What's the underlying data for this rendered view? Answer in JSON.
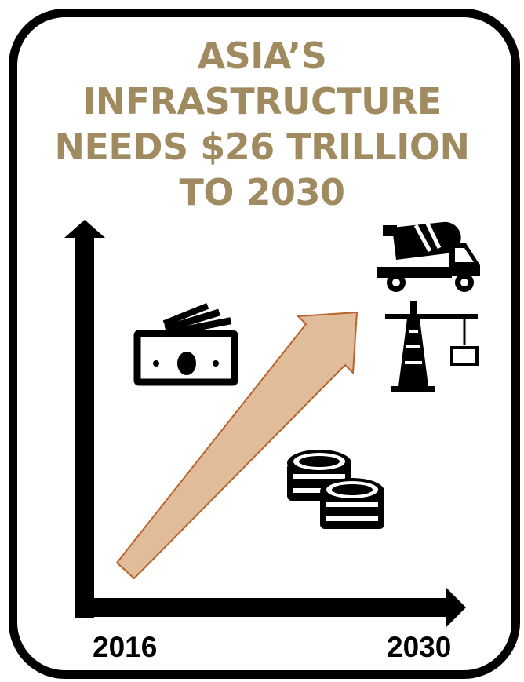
{
  "title_lines": [
    "ASIA’S",
    "INFRASTRUCTURE",
    "NEEDS $26 TRILLION",
    "TO 2030"
  ],
  "axis": {
    "start_label": "2016",
    "end_label": "2030"
  },
  "colors": {
    "title": "#a08b60",
    "trend_arrow_fill": "#e0bc9a",
    "trend_arrow_stroke": "#b8642c",
    "ink": "#000000"
  },
  "icons": [
    "banknotes-icon",
    "coins-stack-icon",
    "cement-mixer-truck-icon",
    "construction-crane-icon"
  ]
}
